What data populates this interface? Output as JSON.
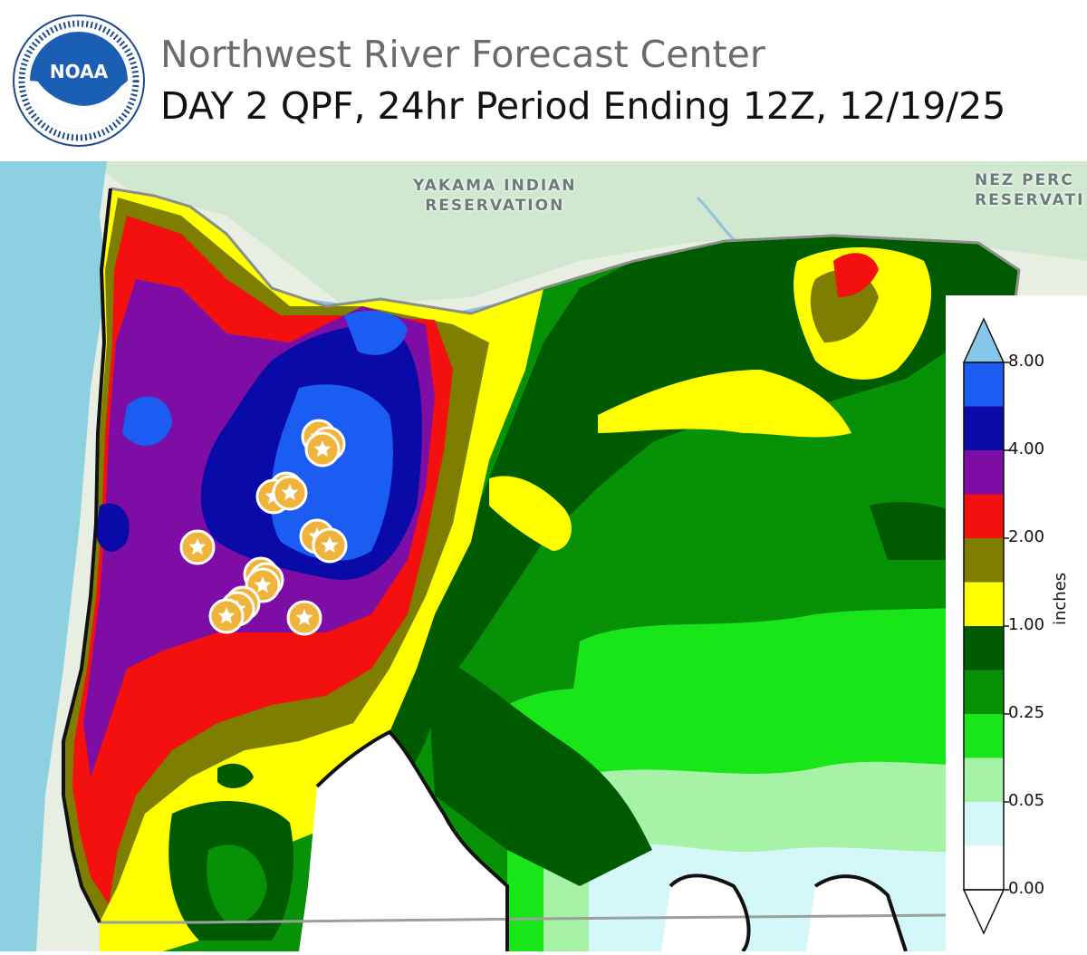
{
  "header": {
    "agency_logo_text": "NOAA",
    "title": "Northwest River Forecast Center",
    "subtitle": "DAY 2 QPF, 24hr Period Ending 12Z, 12/19/25"
  },
  "map": {
    "place_labels": [
      {
        "line1": "YAKAMA INDIAN",
        "line2": "RESERVATION"
      },
      {
        "line1": "NEZ PERC",
        "line2": "RESERVATI"
      }
    ],
    "marker_icon": "star-marker-icon",
    "marker_count": 16
  },
  "legend": {
    "unit": "inches",
    "ticks": [
      "8.00",
      "4.00",
      "2.00",
      "1.00",
      "0.25",
      "0.05",
      "0.00"
    ],
    "colors": {
      "8.00_plus": "#85c7ea",
      "4.00_8.00": "#1b5cf2",
      "3.00_4.00": "#0a0aa8",
      "2.50_3.00": "#7e0da6",
      "2.00_2.50": "#f51010",
      "1.50_2.00": "#7e7e00",
      "1.00_1.50": "#ffff00",
      "0.75_1.00": "#005a00",
      "0.50_0.75": "#079107",
      "0.25_0.50": "#19e619",
      "0.10_0.25": "#a6f2a6",
      "0.05_0.10": "#d4f7f7",
      "0.00_0.05": "#ffffff"
    }
  }
}
